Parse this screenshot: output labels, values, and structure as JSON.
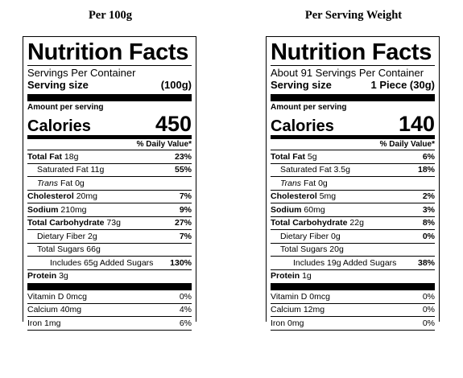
{
  "headings": {
    "left": "Per 100g",
    "right": "Per Serving Weight"
  },
  "panels": [
    {
      "title": "Nutrition Facts",
      "servings": "Servings Per Container",
      "serving_size_label": "Serving size",
      "serving_size_value": "(100g)",
      "amount_per_serving": "Amount per serving",
      "calories_label": "Calories",
      "calories_value": "450",
      "dv_header": "% Daily Value*",
      "total_fat": {
        "label": "Total Fat",
        "amount": "18g",
        "dv": "23%"
      },
      "saturated_fat": {
        "label": "Saturated Fat 11g",
        "dv": "55%"
      },
      "trans_fat": {
        "label_italic": "Trans",
        "label_rest": " Fat 0g",
        "dv": ""
      },
      "cholesterol": {
        "label": "Cholesterol",
        "amount": "20mg",
        "dv": "7%"
      },
      "sodium": {
        "label": "Sodium",
        "amount": "210mg",
        "dv": "9%"
      },
      "total_carb": {
        "label": "Total Carbohydrate",
        "amount": "73g",
        "dv": "27%"
      },
      "fiber": {
        "label": "Dietary Fiber 2g",
        "dv": "7%"
      },
      "total_sugars": {
        "label": "Total Sugars 66g",
        "dv": ""
      },
      "added_sugars": {
        "label": "Includes 65g Added Sugars",
        "dv": "130%"
      },
      "protein": {
        "label": "Protein",
        "amount": "3g",
        "dv": ""
      },
      "vitamin_d": {
        "label": "Vitamin D 0mcg",
        "dv": "0%"
      },
      "calcium": {
        "label": "Calcium 40mg",
        "dv": "4%"
      },
      "iron": {
        "label": "Iron 1mg",
        "dv": "6%"
      }
    },
    {
      "title": "Nutrition Facts",
      "servings": "About 91 Servings Per Container",
      "serving_size_label": "Serving size",
      "serving_size_value": "1 Piece (30g)",
      "amount_per_serving": "Amount per serving",
      "calories_label": "Calories",
      "calories_value": "140",
      "dv_header": "% Daily Value*",
      "total_fat": {
        "label": "Total Fat",
        "amount": "5g",
        "dv": "6%"
      },
      "saturated_fat": {
        "label": "Saturated Fat 3.5g",
        "dv": "18%"
      },
      "trans_fat": {
        "label_italic": "Trans",
        "label_rest": " Fat 0g",
        "dv": ""
      },
      "cholesterol": {
        "label": "Cholesterol",
        "amount": "5mg",
        "dv": "2%"
      },
      "sodium": {
        "label": "Sodium",
        "amount": "60mg",
        "dv": "3%"
      },
      "total_carb": {
        "label": "Total Carbohydrate",
        "amount": "22g",
        "dv": "8%"
      },
      "fiber": {
        "label": "Dietary Fiber 0g",
        "dv": "0%"
      },
      "total_sugars": {
        "label": "Total Sugars 20g",
        "dv": ""
      },
      "added_sugars": {
        "label": "Includes 19g Added Sugars",
        "dv": "38%"
      },
      "protein": {
        "label": "Protein",
        "amount": "1g",
        "dv": ""
      },
      "vitamin_d": {
        "label": "Vitamin D 0mcg",
        "dv": "0%"
      },
      "calcium": {
        "label": "Calcium 12mg",
        "dv": "0%"
      },
      "iron": {
        "label": "Iron 0mg",
        "dv": "0%"
      }
    }
  ]
}
